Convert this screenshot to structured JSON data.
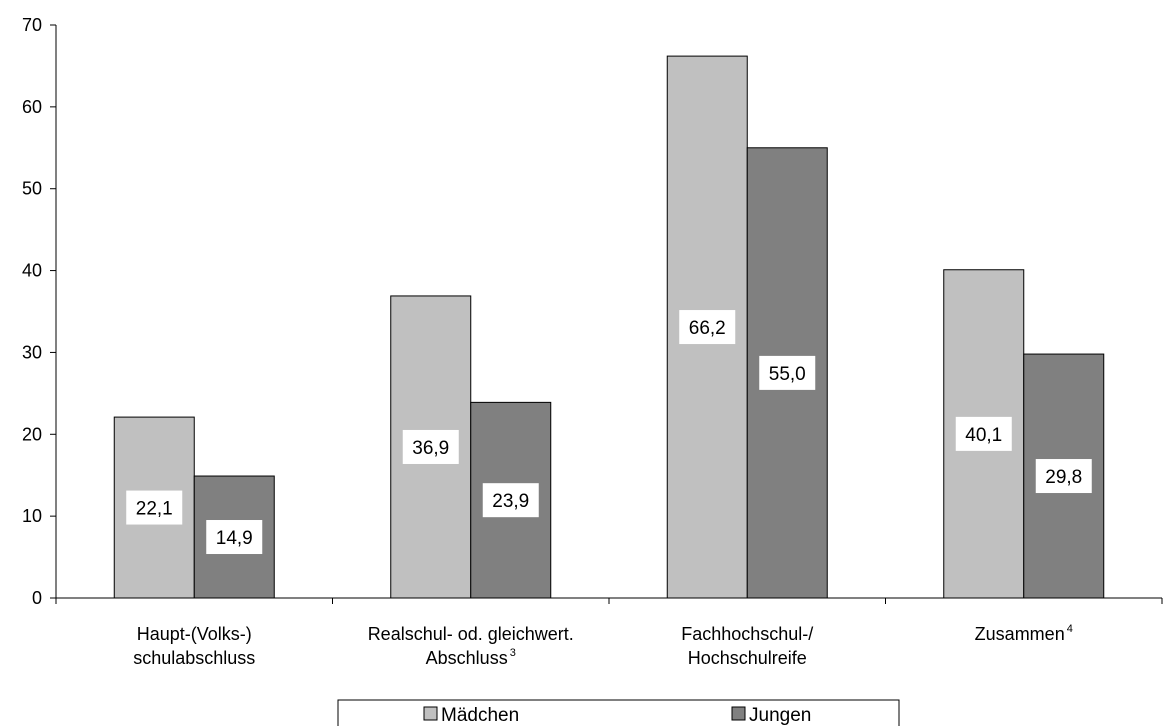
{
  "chart_data": {
    "type": "bar",
    "categories": [
      {
        "lines": [
          "Haupt-(Volks-)",
          "schulabschluss"
        ],
        "sup": ""
      },
      {
        "lines": [
          "Realschul- od. gleichwert.",
          "Abschluss"
        ],
        "sup": "3"
      },
      {
        "lines": [
          "Fachhochschul-/",
          "Hochschulreife"
        ],
        "sup": ""
      },
      {
        "lines": [
          "Zusammen"
        ],
        "sup": "4"
      }
    ],
    "series": [
      {
        "name": "Mädchen",
        "color": "#c0c0c0",
        "values": [
          22.1,
          36.9,
          66.2,
          40.1
        ],
        "labels": [
          "22,1",
          "36,9",
          "66,2",
          "40,1"
        ]
      },
      {
        "name": "Jungen",
        "color": "#808080",
        "values": [
          14.9,
          23.9,
          55.0,
          29.8
        ],
        "labels": [
          "14,9",
          "23,9",
          "55,0",
          "29,8"
        ]
      }
    ],
    "y_ticks": [
      "0",
      "10",
      "20",
      "30",
      "40",
      "50",
      "60",
      "70"
    ],
    "ylim": [
      0,
      70
    ],
    "grid": false,
    "legend": "bottom"
  }
}
